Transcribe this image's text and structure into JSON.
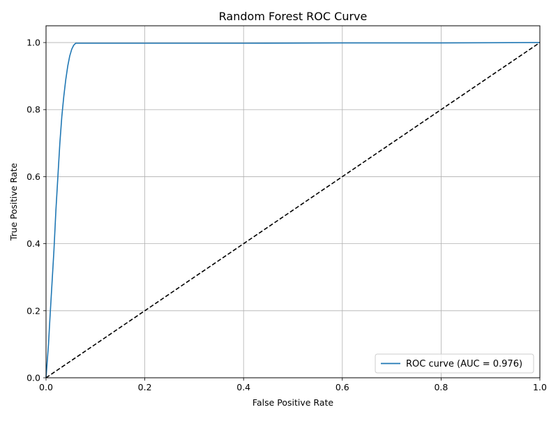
{
  "chart_data": {
    "type": "line",
    "title": "Random Forest ROC Curve",
    "xlabel": "False Positive Rate",
    "ylabel": "True Positive Rate",
    "xlim": [
      0.0,
      1.0
    ],
    "ylim": [
      0.0,
      1.05
    ],
    "x_ticks": [
      0.0,
      0.2,
      0.4,
      0.6,
      0.8,
      1.0
    ],
    "x_tick_labels": [
      "0.0",
      "0.2",
      "0.4",
      "0.6",
      "0.8",
      "1.0"
    ],
    "y_ticks": [
      0.0,
      0.2,
      0.4,
      0.6,
      0.8,
      1.0
    ],
    "y_tick_labels": [
      "0.0",
      "0.2",
      "0.4",
      "0.6",
      "0.8",
      "1.0"
    ],
    "grid": true,
    "legend_position": "lower-right",
    "series": [
      {
        "name": "ROC curve (AUC = 0.976)",
        "color": "#1f77b4",
        "line_style": "solid",
        "x": [
          0.0,
          0.002,
          0.005,
          0.008,
          0.012,
          0.016,
          0.02,
          0.024,
          0.028,
          0.032,
          0.036,
          0.04,
          0.044,
          0.048,
          0.052,
          0.056,
          0.06,
          0.2,
          0.4,
          0.6,
          0.8,
          1.0
        ],
        "y": [
          0.0,
          0.04,
          0.1,
          0.18,
          0.28,
          0.38,
          0.5,
          0.6,
          0.7,
          0.78,
          0.84,
          0.89,
          0.93,
          0.96,
          0.98,
          0.992,
          0.998,
          0.998,
          0.998,
          0.999,
          0.999,
          1.0
        ]
      },
      {
        "name": "",
        "color": "#000000",
        "line_style": "dashed",
        "x": [
          0.0,
          1.0
        ],
        "y": [
          0.0,
          1.0
        ]
      }
    ]
  }
}
